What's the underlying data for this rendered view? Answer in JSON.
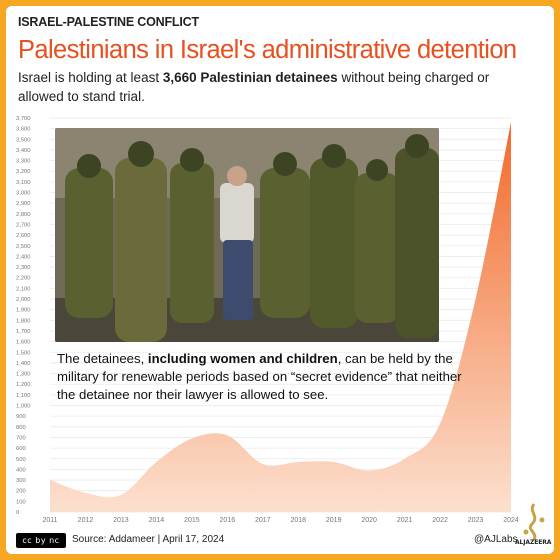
{
  "kicker": "ISRAEL-PALESTINE CONFLICT",
  "title": "Palestinians in Israel's administrative detention",
  "subtitle": {
    "before": "Israel is holding at least ",
    "bold": "3,660 Palestinian detainees",
    "after": " without being charged or allowed to stand trial."
  },
  "annotation": {
    "before": "The detainees, ",
    "bold": "including women and children",
    "after": ", can be held by the military for renewable periods based on “secret evidence” that neither the detainee nor their lawyer is allowed to see."
  },
  "footer": {
    "cc_label": "cc by nc",
    "source_label": "Source:",
    "source_name": "Addameer",
    "date": "April 17, 2024",
    "handle": "@AJLabs",
    "brand": "ALJAZEERA"
  },
  "colors": {
    "accent": "#e8501f",
    "area_top": "#f26a2a",
    "area_bottom": "#fce0cf",
    "frame": "#f5a623"
  },
  "photo_icon": "soldiers-photo",
  "chart_data": {
    "type": "area",
    "x": [
      "2011",
      "2012",
      "2013",
      "2014",
      "2015",
      "2016",
      "2017",
      "2018",
      "2019",
      "2020",
      "2021",
      "2022",
      "2023",
      "2024"
    ],
    "values": [
      300,
      180,
      160,
      470,
      690,
      720,
      450,
      470,
      470,
      390,
      500,
      830,
      2000,
      3660
    ],
    "ylim": [
      0,
      3700
    ],
    "yticks": [
      0,
      100,
      200,
      300,
      400,
      500,
      600,
      700,
      800,
      900,
      1000,
      1100,
      1200,
      1300,
      1400,
      1500,
      1600,
      1700,
      1800,
      1900,
      2000,
      2100,
      2200,
      2300,
      2400,
      2500,
      2600,
      2700,
      2800,
      2900,
      3000,
      3100,
      3200,
      3300,
      3400,
      3500,
      3600,
      3700
    ],
    "ytick_labels": [
      "0",
      "100",
      "200",
      "300",
      "400",
      "500",
      "600",
      "700",
      "800",
      "900",
      "1,000",
      "1,100",
      "1,200",
      "1,300",
      "1,400",
      "1,500",
      "1,600",
      "1,700",
      "1,800",
      "1,900",
      "2,000",
      "2,100",
      "2,200",
      "2,300",
      "2,400",
      "2,500",
      "2,600",
      "2,700",
      "2,800",
      "2,900",
      "3,000",
      "3,100",
      "3,200",
      "3,300",
      "3,400",
      "3,500",
      "3,600",
      "3,700"
    ],
    "grid": true
  }
}
